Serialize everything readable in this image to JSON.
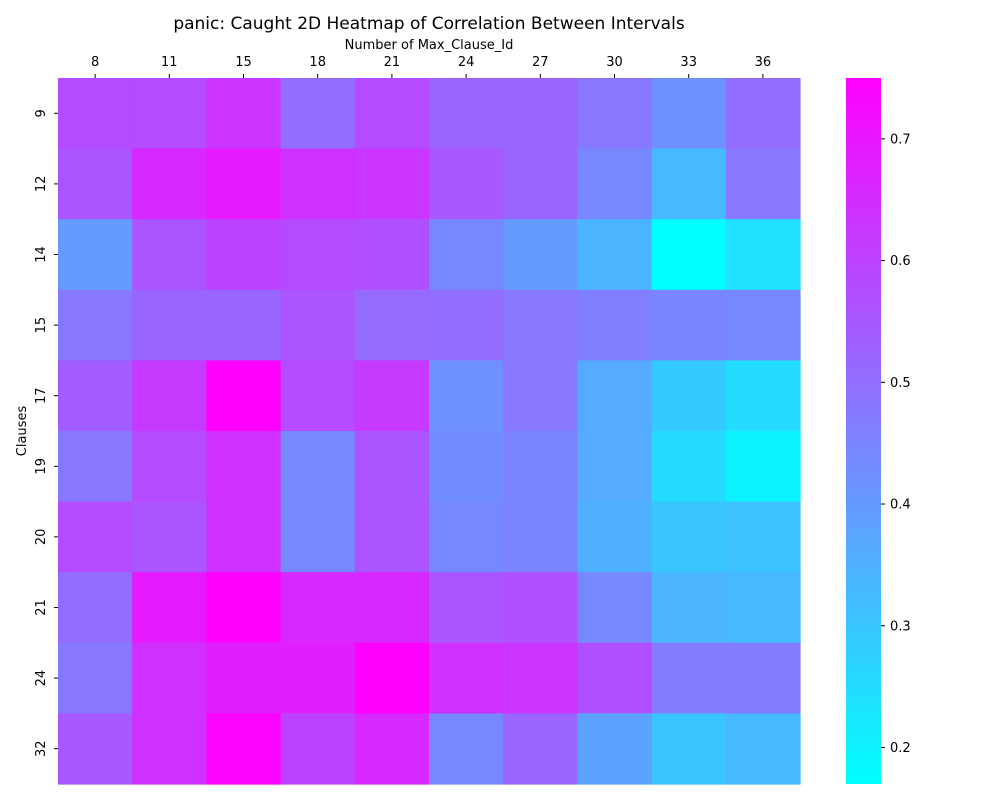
{
  "chart_data": {
    "type": "heatmap",
    "title": "panic: Caught 2D Heatmap of Correlation Between Intervals",
    "xlabel": "Number of Max_Clause_Id",
    "ylabel": "Clauses",
    "x_categories": [
      "8",
      "11",
      "15",
      "18",
      "21",
      "24",
      "27",
      "30",
      "33",
      "36"
    ],
    "y_categories": [
      "9",
      "12",
      "14",
      "15",
      "17",
      "19",
      "20",
      "21",
      "24",
      "32"
    ],
    "values": [
      [
        0.58,
        0.58,
        0.63,
        0.5,
        0.58,
        0.52,
        0.52,
        0.48,
        0.42,
        0.5
      ],
      [
        0.56,
        0.66,
        0.69,
        0.64,
        0.63,
        0.55,
        0.52,
        0.44,
        0.33,
        0.48
      ],
      [
        0.4,
        0.56,
        0.6,
        0.58,
        0.57,
        0.44,
        0.4,
        0.34,
        0.17,
        0.24
      ],
      [
        0.48,
        0.52,
        0.52,
        0.56,
        0.51,
        0.5,
        0.48,
        0.46,
        0.45,
        0.44
      ],
      [
        0.54,
        0.62,
        0.75,
        0.58,
        0.62,
        0.42,
        0.48,
        0.36,
        0.29,
        0.25
      ],
      [
        0.48,
        0.58,
        0.64,
        0.44,
        0.56,
        0.43,
        0.45,
        0.36,
        0.25,
        0.2
      ],
      [
        0.58,
        0.56,
        0.64,
        0.44,
        0.56,
        0.44,
        0.45,
        0.35,
        0.3,
        0.31
      ],
      [
        0.5,
        0.69,
        0.75,
        0.66,
        0.66,
        0.56,
        0.57,
        0.44,
        0.34,
        0.33
      ],
      [
        0.48,
        0.64,
        0.68,
        0.68,
        0.75,
        0.64,
        0.63,
        0.57,
        0.47,
        0.47
      ],
      [
        0.55,
        0.64,
        0.74,
        0.6,
        0.66,
        0.44,
        0.52,
        0.38,
        0.3,
        0.33
      ]
    ],
    "colorbar": {
      "colormap": "cool",
      "vmin": 0.17,
      "vmax": 0.75,
      "ticks": [
        "0.2",
        "0.3",
        "0.4",
        "0.5",
        "0.6",
        "0.7"
      ],
      "min_color": "#00ffff",
      "max_color": "#ff00ff"
    },
    "x_tick_position": "top",
    "grid": false
  }
}
